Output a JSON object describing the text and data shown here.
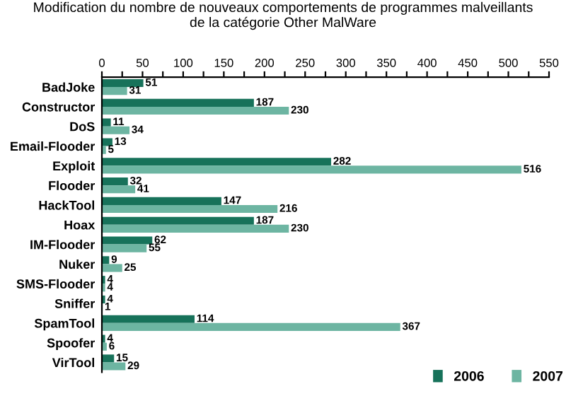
{
  "chart_data": {
    "type": "bar",
    "orientation": "horizontal",
    "title": "Modification du nombre de nouveaux comportements de programmes malveillants\nde la catégorie Other MalWare",
    "categories": [
      "BadJoke",
      "Constructor",
      "DoS",
      "Email-Flooder",
      "Exploit",
      "Flooder",
      "HackTool",
      "Hoax",
      "IM-Flooder",
      "Nuker",
      "SMS-Flooder",
      "Sniffer",
      "SpamTool",
      "Spoofer",
      "VirTool"
    ],
    "series": [
      {
        "name": "2006",
        "color": "#17725a",
        "values": [
          51,
          187,
          11,
          13,
          282,
          32,
          147,
          187,
          62,
          9,
          4,
          4,
          114,
          4,
          15
        ]
      },
      {
        "name": "2007",
        "color": "#6db5a2",
        "values": [
          31,
          230,
          34,
          5,
          516,
          41,
          216,
          230,
          55,
          25,
          4,
          1,
          367,
          6,
          29
        ]
      }
    ],
    "xlim": [
      0,
      550
    ],
    "xticks": [
      0,
      {
        "value": 25,
        "label": null
      },
      50,
      {
        "value": 75,
        "label": null
      },
      100,
      {
        "value": 125,
        "label": null
      },
      150,
      {
        "value": 175,
        "label": null
      },
      200,
      {
        "value": 225,
        "label": null
      },
      250,
      {
        "value": 275,
        "label": null
      },
      300,
      {
        "value": 325,
        "label": null
      },
      350,
      {
        "value": 375,
        "label": null
      },
      400,
      {
        "value": 425,
        "label": null
      },
      450,
      {
        "value": 475,
        "label": null
      },
      500,
      {
        "value": 525,
        "label": null
      },
      550
    ],
    "data_labels": true,
    "grid": false,
    "legend": "bottom right"
  }
}
